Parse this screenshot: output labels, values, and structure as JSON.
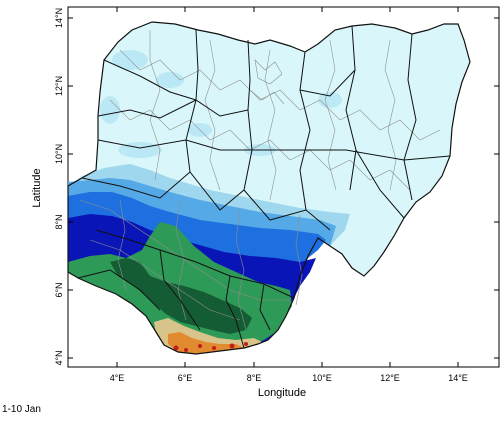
{
  "map": {
    "xlabel": "Longitude",
    "ylabel": "Latitude",
    "period": "1-10 Jan",
    "x_ticks": [
      "4°E",
      "6°E",
      "8°E",
      "10°E",
      "12°E",
      "14°E"
    ],
    "y_ticks": [
      "4°N",
      "6°N",
      "8°N",
      "10°N",
      "12°N",
      "14°N"
    ],
    "lon_range": [
      2.5,
      15.0
    ],
    "lat_range": [
      3.8,
      14.2
    ],
    "colors": {
      "very_light": "#d9f7fb",
      "light_blue": "#9fd8ee",
      "sky_blue": "#55a9e6",
      "mid_blue": "#1e6fe0",
      "dark_blue": "#0a15b8",
      "green": "#2e9a57",
      "dark_green": "#145c33",
      "tan": "#d8c48a",
      "orange": "#e28a30",
      "red": "#c21c1c"
    }
  }
}
